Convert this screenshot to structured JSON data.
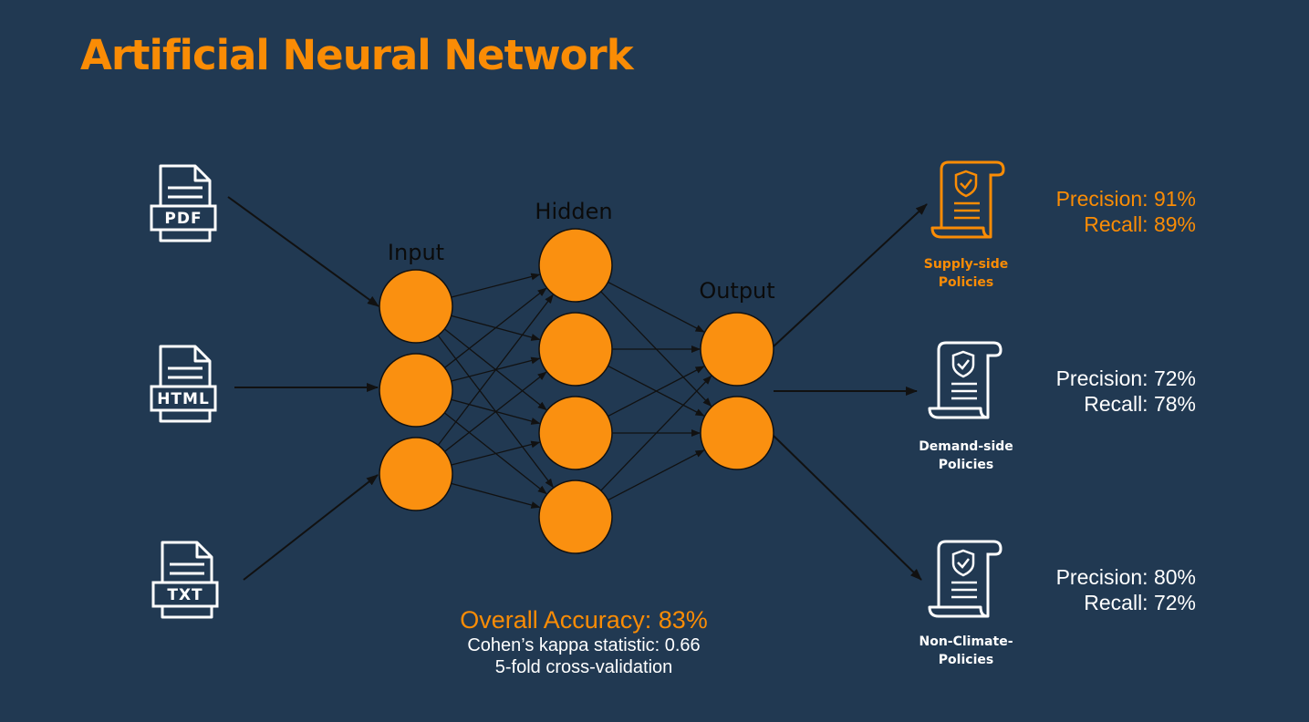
{
  "title": "Artificial Neural Network",
  "layers": {
    "input": "Input",
    "hidden": "Hidden",
    "output": "Output"
  },
  "file_inputs": [
    {
      "label": "PDF",
      "icon": "pdf-file-icon"
    },
    {
      "label": "HTML",
      "icon": "html-file-icon"
    },
    {
      "label": "TXT",
      "icon": "txt-file-icon"
    }
  ],
  "classes": [
    {
      "line1": "Supply-side",
      "line2": "Policies",
      "precision": "Precision: 91%",
      "recall": "Recall: 89%",
      "icon": "policy-scroll-icon",
      "color": "#FA8C05"
    },
    {
      "line1": "Demand-side",
      "line2": "Policies",
      "precision": "Precision: 72%",
      "recall": "Recall: 78%",
      "icon": "policy-scroll-icon",
      "color": "#FFFFFF"
    },
    {
      "line1": "Non-Climate-",
      "line2": "Policies",
      "precision": "Precision: 80%",
      "recall": "Recall: 72%",
      "icon": "policy-scroll-icon",
      "color": "#FFFFFF"
    }
  ],
  "summary": {
    "accuracy": "Overall Accuracy: 83%",
    "kappa": "Cohen’s kappa statistic: 0.66",
    "validation": "5-fold cross-validation"
  },
  "colors": {
    "background": "#213952",
    "accent": "#FA8C05",
    "node_fill": "#FA9010",
    "text_white": "#FFFFFF"
  }
}
